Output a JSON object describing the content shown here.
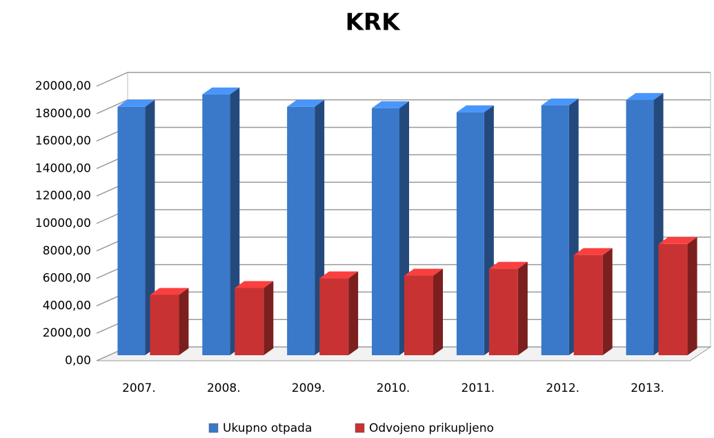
{
  "chart_data": {
    "type": "bar3d",
    "title": "KRK",
    "categories": [
      "2007.",
      "2008.",
      "2009.",
      "2010.",
      "2011.",
      "2012.",
      "2013."
    ],
    "series": [
      {
        "name": "Ukupno otpada",
        "color": "#3a78c9",
        "values": [
          18100,
          19000,
          18100,
          18000,
          17700,
          18200,
          18600
        ]
      },
      {
        "name": "Odvojeno prikupljeno",
        "color": "#c83232",
        "values": [
          4400,
          4900,
          5600,
          5800,
          6300,
          7300,
          8100
        ]
      }
    ],
    "ylim": [
      0,
      20000
    ],
    "yticks": [
      {
        "value": 0,
        "label": "0,00"
      },
      {
        "value": 2000,
        "label": "2000,00"
      },
      {
        "value": 4000,
        "label": "4000,00"
      },
      {
        "value": 6000,
        "label": "6000,00"
      },
      {
        "value": 8000,
        "label": "8000,00"
      },
      {
        "value": 10000,
        "label": "10000,00"
      },
      {
        "value": 12000,
        "label": "12000,00"
      },
      {
        "value": 14000,
        "label": "14000,00"
      },
      {
        "value": 16000,
        "label": "16000,00"
      },
      {
        "value": 18000,
        "label": "18000,00"
      },
      {
        "value": 20000,
        "label": "20000,00"
      }
    ],
    "grid": true,
    "legend": "bottom"
  }
}
